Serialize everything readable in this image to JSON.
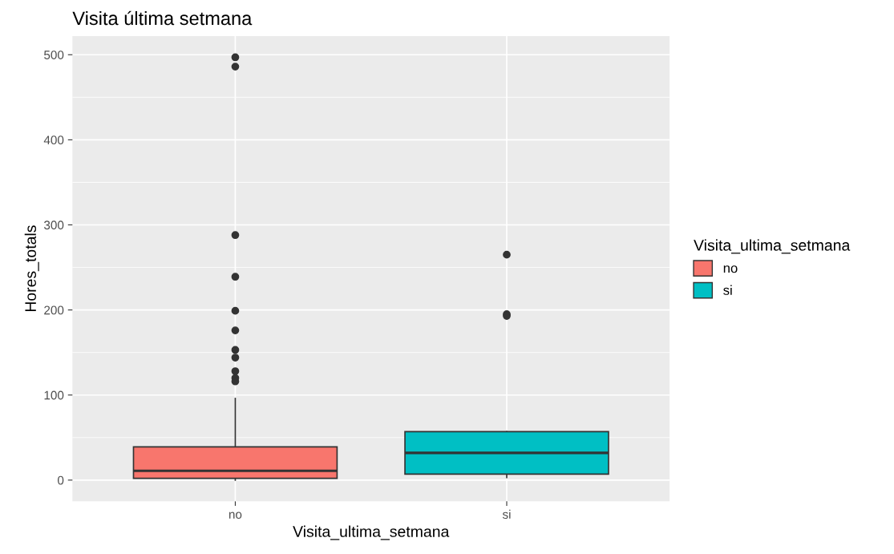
{
  "chart_data": {
    "type": "box",
    "title": "Visita última setmana",
    "xlabel": "Visita_ultima_setmana",
    "ylabel": "Hores_totals",
    "legend_title": "Visita_ultima_setmana",
    "categories": [
      "no",
      "si"
    ],
    "series": [
      {
        "name": "no",
        "color": "#f8766d",
        "boxes": [
          {
            "low": 0,
            "q1": 2,
            "median": 11,
            "q3": 39,
            "high": 96,
            "outliers": [
              497,
              486,
              288,
              239,
              199,
              176,
              153,
              144,
              128,
              120,
              116
            ]
          },
          null
        ]
      },
      {
        "name": "si",
        "color": "#00bfc4",
        "boxes": [
          null,
          {
            "low": 3,
            "q1": 7,
            "median": 32,
            "q3": 57,
            "high": 57,
            "outliers": [
              265,
              195,
              193
            ]
          }
        ]
      }
    ],
    "ylim": [
      -25,
      522
    ],
    "yticks": [
      0,
      100,
      200,
      300,
      400,
      500
    ],
    "grid": true,
    "legend": "right"
  }
}
